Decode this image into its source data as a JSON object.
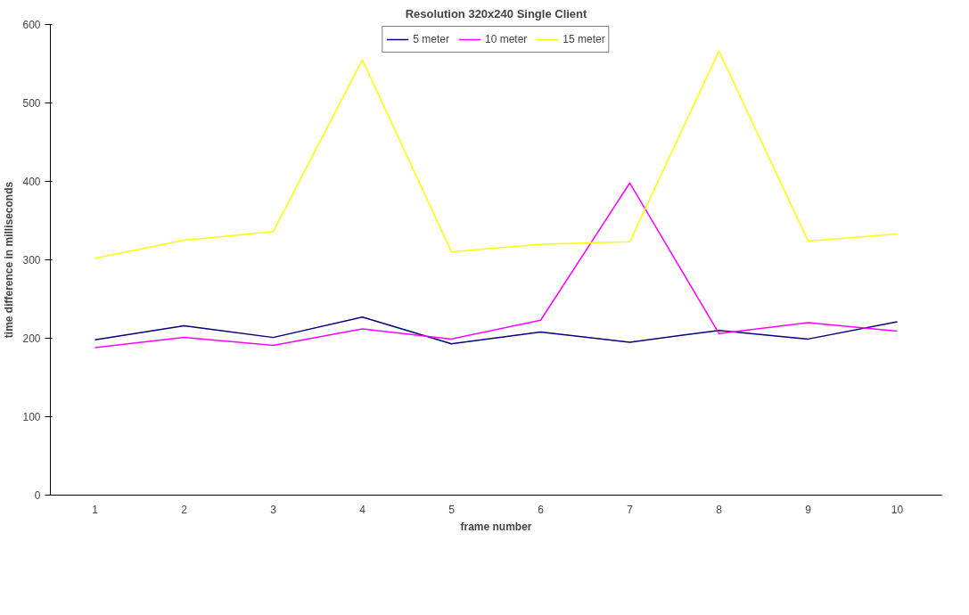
{
  "chart_data": {
    "type": "line",
    "title": "Resolution 320x240 Single Client",
    "xlabel": "frame number",
    "ylabel": "time difference in milliseconds",
    "categories": [
      "1",
      "2",
      "3",
      "4",
      "5",
      "6",
      "7",
      "8",
      "9",
      "10"
    ],
    "series": [
      {
        "name": "5 meter",
        "color": "#000080",
        "values": [
          198,
          216,
          201,
          227,
          193,
          208,
          195,
          210,
          199,
          221
        ]
      },
      {
        "name": "10 meter",
        "color": "#ff00ff",
        "values": [
          188,
          201,
          191,
          212,
          199,
          223,
          398,
          206,
          220,
          209
        ]
      },
      {
        "name": "15 meter",
        "color": "#ffff00",
        "values": [
          302,
          325,
          336,
          555,
          310,
          320,
          323,
          566,
          324,
          333
        ]
      }
    ],
    "ylim": [
      0,
      600
    ],
    "yticks": [
      0,
      100,
      200,
      300,
      400,
      500,
      600
    ],
    "grid": false,
    "legend": "top",
    "marker": "none",
    "line_style": "solid"
  }
}
